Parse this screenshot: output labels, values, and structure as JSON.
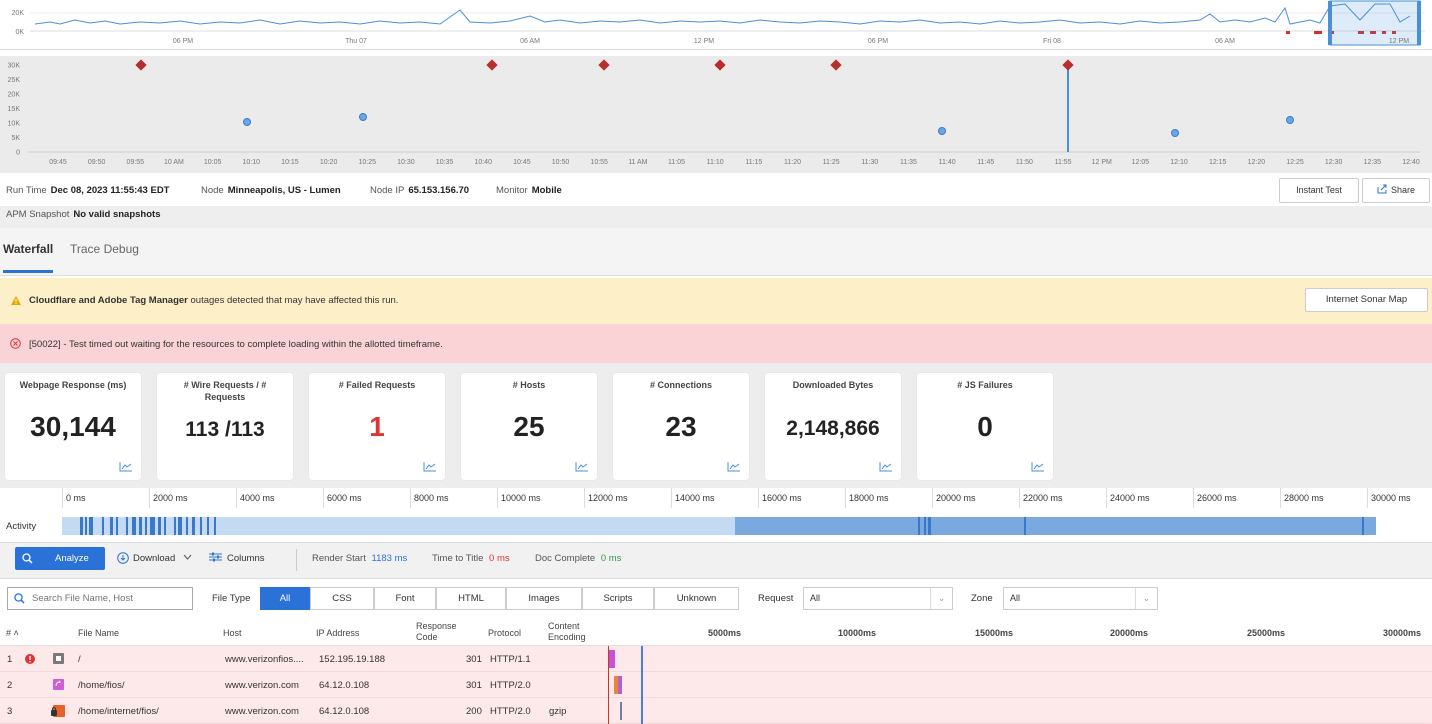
{
  "overview": {
    "y_ticks": [
      "20K",
      "0K"
    ],
    "x_ticks": [
      "06 PM",
      "Thu 07",
      "06 AM",
      "12 PM",
      "06 PM",
      "Fri 08",
      "06 AM",
      "12 PM"
    ]
  },
  "scatter": {
    "y_ticks": [
      "30K",
      "25K",
      "20K",
      "15K",
      "10K",
      "5K",
      "0"
    ],
    "x_ticks": [
      "09:45",
      "09:50",
      "09:55",
      "10 AM",
      "10:05",
      "10:10",
      "10:15",
      "10:20",
      "10:25",
      "10:30",
      "10:35",
      "10:40",
      "10:45",
      "10:50",
      "10:55",
      "11 AM",
      "11:05",
      "11:10",
      "11:15",
      "11:20",
      "11:25",
      "11:30",
      "11:35",
      "11:40",
      "11:45",
      "11:50",
      "11:55",
      "12 PM",
      "12:05",
      "12:10",
      "12:15",
      "12:20",
      "12:25",
      "12:30",
      "12:35",
      "12:40"
    ]
  },
  "run_info": {
    "run_time_label": "Run Time",
    "run_time_value": "Dec 08, 2023 11:55:43 EDT",
    "node_label": "Node",
    "node_value": "Minneapolis, US - Lumen",
    "node_ip_label": "Node IP",
    "node_ip_value": "65.153.156.70",
    "monitor_label": "Monitor",
    "monitor_value": "Mobile",
    "instant_test": "Instant Test",
    "share": "Share",
    "apm_label": "APM Snapshot",
    "apm_value": "No valid snapshots"
  },
  "tabs": {
    "waterfall": "Waterfall",
    "trace_debug": "Trace Debug"
  },
  "alerts": {
    "warning_bold": "Cloudflare and Adobe Tag Manager",
    "warning_text": " outages detected that may have affected this run.",
    "sonar_button": "Internet Sonar Map",
    "error_text": "[50022] - Test timed out waiting for the resources to complete loading within the allotted timeframe."
  },
  "cards": [
    {
      "title": "Webpage Response (ms)",
      "value": "30,144"
    },
    {
      "title": "# Wire Requests / # Requests",
      "value": "113 /113"
    },
    {
      "title": "# Failed Requests",
      "value": "1"
    },
    {
      "title": "# Hosts",
      "value": "25"
    },
    {
      "title": "# Connections",
      "value": "23"
    },
    {
      "title": "Downloaded Bytes",
      "value": "2,148,866"
    },
    {
      "title": "# JS Failures",
      "value": "0"
    }
  ],
  "timeline": {
    "ticks": [
      "0 ms",
      "2000 ms",
      "4000 ms",
      "6000 ms",
      "8000 ms",
      "10000 ms",
      "12000 ms",
      "14000 ms",
      "16000 ms",
      "18000 ms",
      "20000 ms",
      "22000 ms",
      "24000 ms",
      "26000 ms",
      "28000 ms",
      "30000 ms"
    ],
    "activity_label": "Activity"
  },
  "toolbar": {
    "analyze": "Analyze",
    "download": "Download",
    "columns": "Columns",
    "render_start_label": "Render Start",
    "render_start_value": "1183 ms",
    "time_to_title_label": "Time to Title",
    "time_to_title_value": "0 ms",
    "doc_complete_label": "Doc Complete",
    "doc_complete_value": "0 ms"
  },
  "filters": {
    "search_placeholder": "Search File Name, Host",
    "file_type_label": "File Type",
    "types": [
      "All",
      "CSS",
      "Font",
      "HTML",
      "Images",
      "Scripts",
      "Unknown"
    ],
    "request_label": "Request",
    "request_value": "All",
    "zone_label": "Zone",
    "zone_value": "All"
  },
  "table": {
    "headers": {
      "num": "# ˄",
      "file": "File Name",
      "host": "Host",
      "ip": "IP Address",
      "response": "Response Code",
      "protocol": "Protocol",
      "encoding": "Content Encoding"
    },
    "scale": [
      "5000ms",
      "10000ms",
      "15000ms",
      "20000ms",
      "25000ms",
      "30000ms"
    ],
    "rows": [
      {
        "num": "1",
        "file": "/",
        "host": "www.verizonfios....",
        "ip": "152.195.19.188",
        "code": "301",
        "protocol": "HTTP/1.1",
        "encoding": ""
      },
      {
        "num": "2",
        "file": "/home/fios/",
        "host": "www.verizon.com",
        "ip": "64.12.0.108",
        "code": "301",
        "protocol": "HTTP/2.0",
        "encoding": ""
      },
      {
        "num": "3",
        "file": "/home/internet/fios/",
        "host": "www.verizon.com",
        "ip": "64.12.0.108",
        "code": "200",
        "protocol": "HTTP/2.0",
        "encoding": "gzip"
      }
    ]
  }
}
